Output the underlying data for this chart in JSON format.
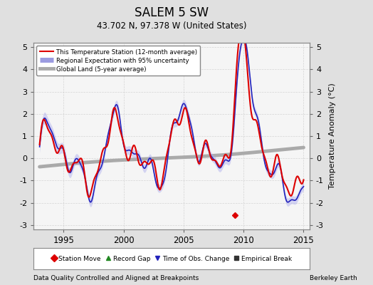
{
  "title": "SALEM 5 SW",
  "subtitle": "43.702 N, 97.378 W (United States)",
  "footer_left": "Data Quality Controlled and Aligned at Breakpoints",
  "footer_right": "Berkeley Earth",
  "ylabel": "Temperature Anomaly (°C)",
  "xlim": [
    1992.5,
    2015.5
  ],
  "ylim": [
    -3.2,
    5.2
  ],
  "yticks": [
    -3,
    -2,
    -1,
    0,
    1,
    2,
    3,
    4,
    5
  ],
  "xticks": [
    1995,
    2000,
    2005,
    2010,
    2015
  ],
  "background_color": "#e0e0e0",
  "plot_bg_color": "#f5f5f5",
  "legend_items": [
    {
      "label": "This Temperature Station (12-month average)",
      "color": "#dd0000",
      "lw": 1.5
    },
    {
      "label": "Regional Expectation with 95% uncertainty",
      "color": "#2222bb",
      "lw": 1.2
    },
    {
      "label": "Global Land (5-year average)",
      "color": "#aaaaaa",
      "lw": 3.5
    }
  ],
  "marker_legend": [
    {
      "label": "Station Move",
      "color": "#dd0000",
      "marker": "D"
    },
    {
      "label": "Record Gap",
      "color": "#228822",
      "marker": "^"
    },
    {
      "label": "Time of Obs. Change",
      "color": "#2222bb",
      "marker": "v"
    },
    {
      "label": "Empirical Break",
      "color": "#333333",
      "marker": "s"
    }
  ],
  "station_move_x": 2009.3,
  "station_move_y": -2.55,
  "grid_color": "#cccccc",
  "uncertainty_color": "#aaaaee",
  "uncertainty_alpha": 0.45
}
